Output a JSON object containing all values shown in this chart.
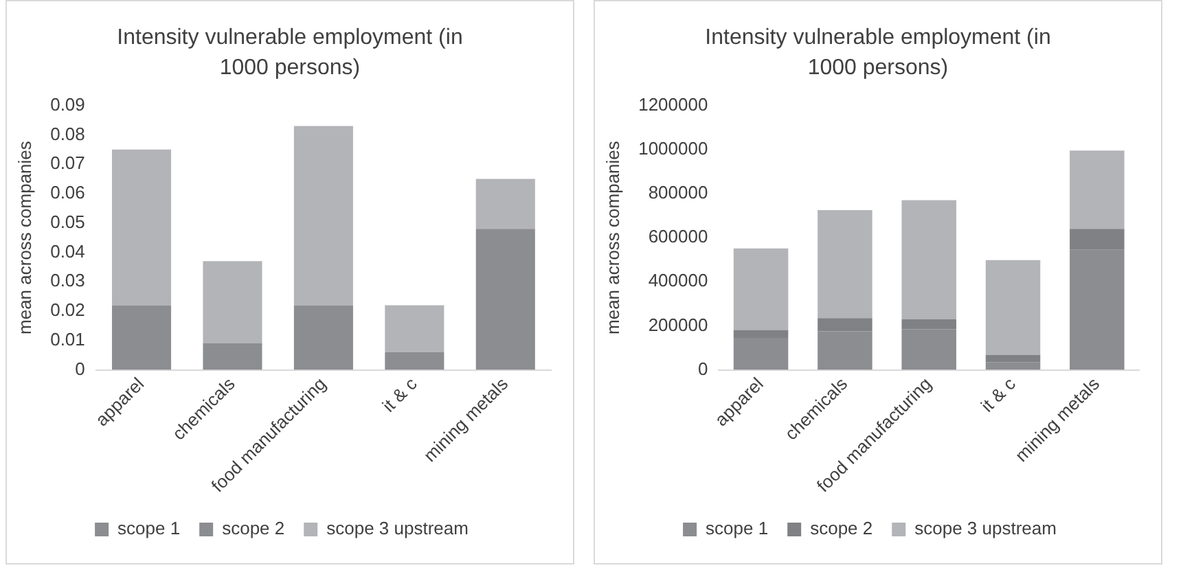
{
  "chart_data": [
    {
      "type": "bar",
      "title": "Intensity vulnerable employment (in 1000 persons)",
      "ylabel": "mean across companies",
      "categories": [
        "apparel",
        "chemicals",
        "food manufacturing",
        "it & c",
        "mining metals"
      ],
      "stacked": true,
      "legend": "bottom",
      "grid": false,
      "ylim": [
        0,
        0.09
      ],
      "yticks": [
        0,
        0.01,
        0.02,
        0.03,
        0.04,
        0.05,
        0.06,
        0.07,
        0.08,
        0.09
      ],
      "series": [
        {
          "name": "scope 1",
          "color": "#8c8d91",
          "values": [
            0,
            0,
            0,
            0,
            0
          ]
        },
        {
          "name": "scope 2",
          "color": "#8c8d91",
          "values": [
            0.022,
            0.009,
            0.022,
            0.006,
            0.048
          ]
        },
        {
          "name": "scope 3 upstream",
          "color": "#b3b4b7",
          "values": [
            0.053,
            0.028,
            0.061,
            0.016,
            0.017
          ]
        }
      ]
    },
    {
      "type": "bar",
      "title": "Intensity vulnerable employment (in 1000 persons)",
      "ylabel": "mean across companies",
      "categories": [
        "apparel",
        "chemicals",
        "food manufacturing",
        "it & c",
        "mining metals"
      ],
      "stacked": true,
      "legend": "bottom",
      "grid": false,
      "ylim": [
        0,
        1200000
      ],
      "yticks": [
        0,
        200000,
        400000,
        600000,
        800000,
        1000000,
        1200000
      ],
      "series": [
        {
          "name": "scope 1",
          "color": "#8c8d91",
          "values": [
            145000,
            175000,
            185000,
            35000,
            545000
          ]
        },
        {
          "name": "scope 2",
          "color": "#808185",
          "values": [
            36000,
            60000,
            45000,
            33000,
            95000
          ]
        },
        {
          "name": "scope 3 upstream",
          "color": "#b3b4b7",
          "values": [
            370000,
            490000,
            540000,
            430000,
            355000
          ]
        }
      ]
    }
  ]
}
